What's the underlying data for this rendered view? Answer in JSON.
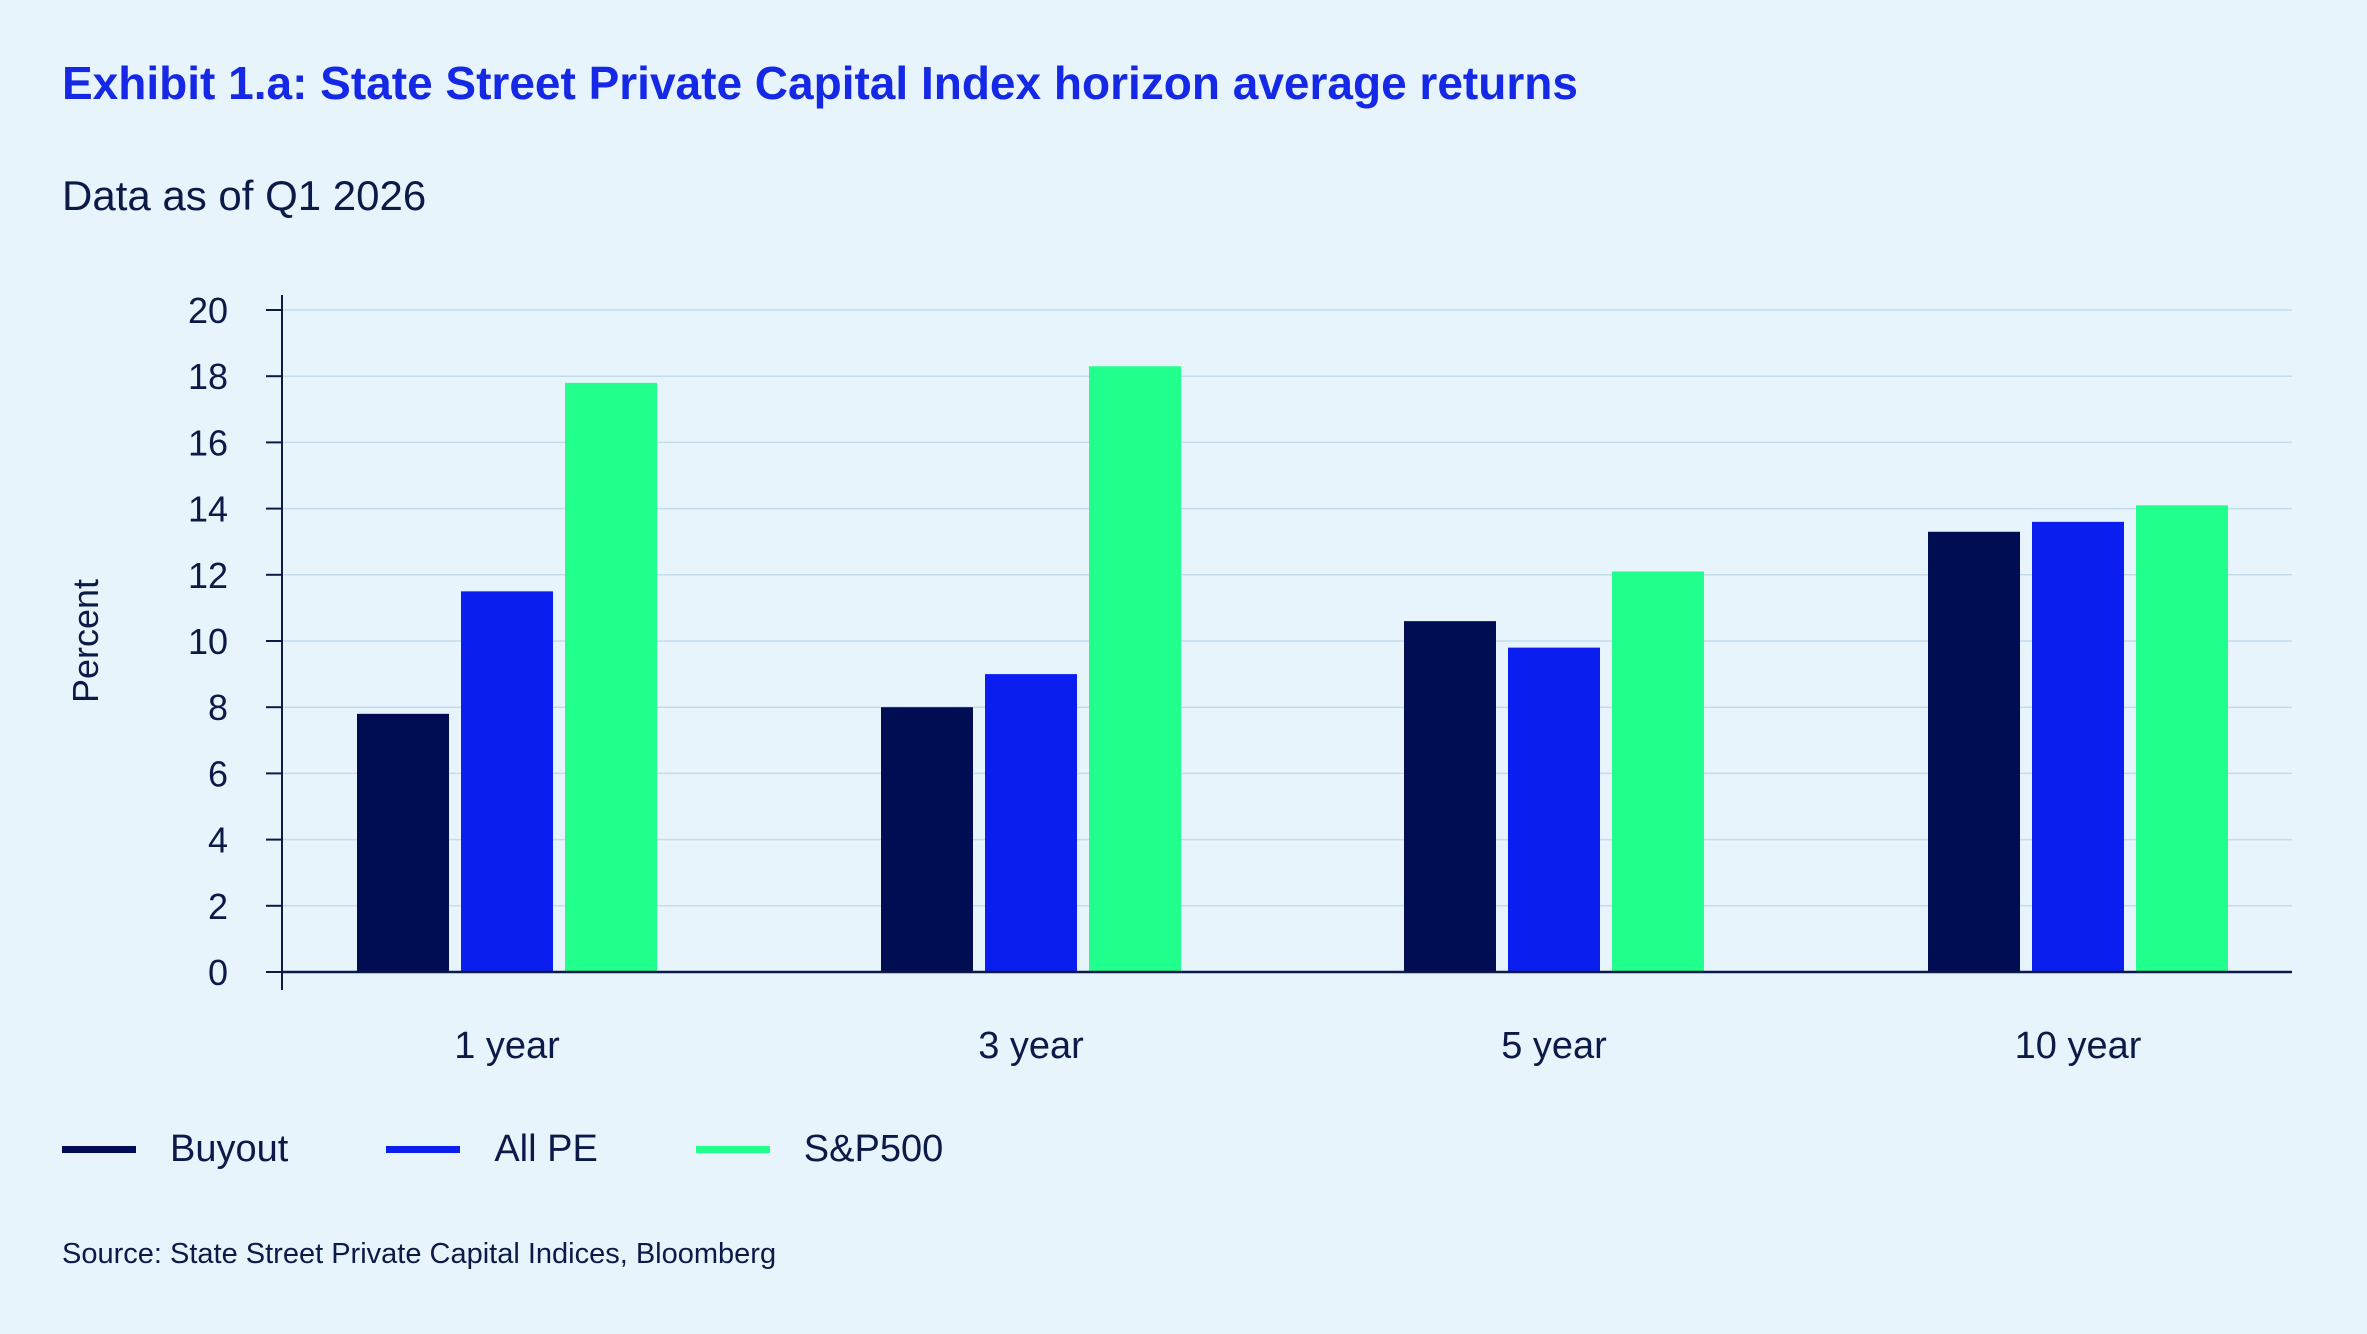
{
  "header": {
    "title": "Exhibit 1.a: State Street Private Capital Index horizon average returns",
    "subtitle": "Data as of Q1 2026"
  },
  "chart_data": {
    "type": "bar",
    "ylabel": "Percent",
    "xlabel": "",
    "ylim": [
      0,
      20
    ],
    "yticks": [
      0,
      2,
      4,
      6,
      8,
      10,
      12,
      14,
      16,
      18,
      20
    ],
    "grid": true,
    "legend_position": "bottom-left",
    "categories": [
      "1 year",
      "3 year",
      "5 year",
      "10 year"
    ],
    "series": [
      {
        "name": "Buyout",
        "color": "#000d52",
        "values": [
          7.8,
          8.0,
          10.6,
          13.3
        ]
      },
      {
        "name": "All PE",
        "color": "#0a1ef0",
        "values": [
          11.5,
          9.0,
          9.8,
          13.6
        ]
      },
      {
        "name": "S&P500",
        "color": "#21ff8c",
        "values": [
          17.8,
          18.3,
          12.1,
          14.1
        ]
      }
    ]
  },
  "footer": {
    "source": "Source: State Street Private Capital Indices, Bloomberg"
  }
}
